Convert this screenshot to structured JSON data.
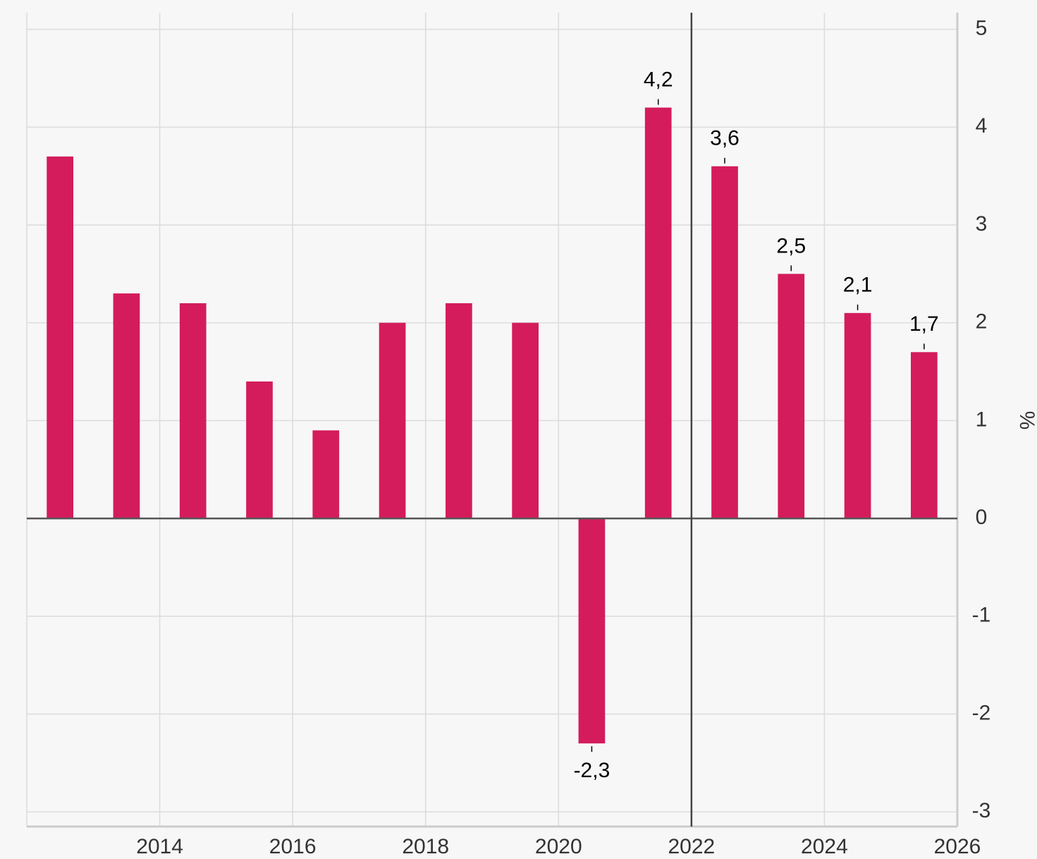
{
  "chart_data": {
    "type": "bar",
    "x": [
      2012.5,
      2013.5,
      2014.5,
      2015.5,
      2016.5,
      2017.5,
      2018.5,
      2019.5,
      2020.5,
      2021.5,
      2022.5,
      2023.5,
      2024.5,
      2025.5
    ],
    "values": [
      3.7,
      2.3,
      2.2,
      1.4,
      0.9,
      2.0,
      2.2,
      2.0,
      -2.3,
      4.2,
      3.6,
      2.5,
      2.1,
      1.7
    ],
    "value_labels": [
      null,
      null,
      null,
      null,
      null,
      null,
      null,
      null,
      "-2,3",
      "4,2",
      "3,6",
      "2,5",
      "2,1",
      "1,7"
    ],
    "color": "#d41c5c",
    "xlim": [
      2012,
      2026
    ],
    "xticks": [
      2014,
      2016,
      2018,
      2020,
      2022,
      2024,
      2026
    ],
    "ylim": [
      -3.15,
      5.17
    ],
    "yticks": [
      -3,
      -2,
      -1,
      0,
      1,
      2,
      3,
      4,
      5
    ],
    "y_axis_label": "%",
    "y_axis_side": "right",
    "grid": true,
    "vline": 2022
  }
}
